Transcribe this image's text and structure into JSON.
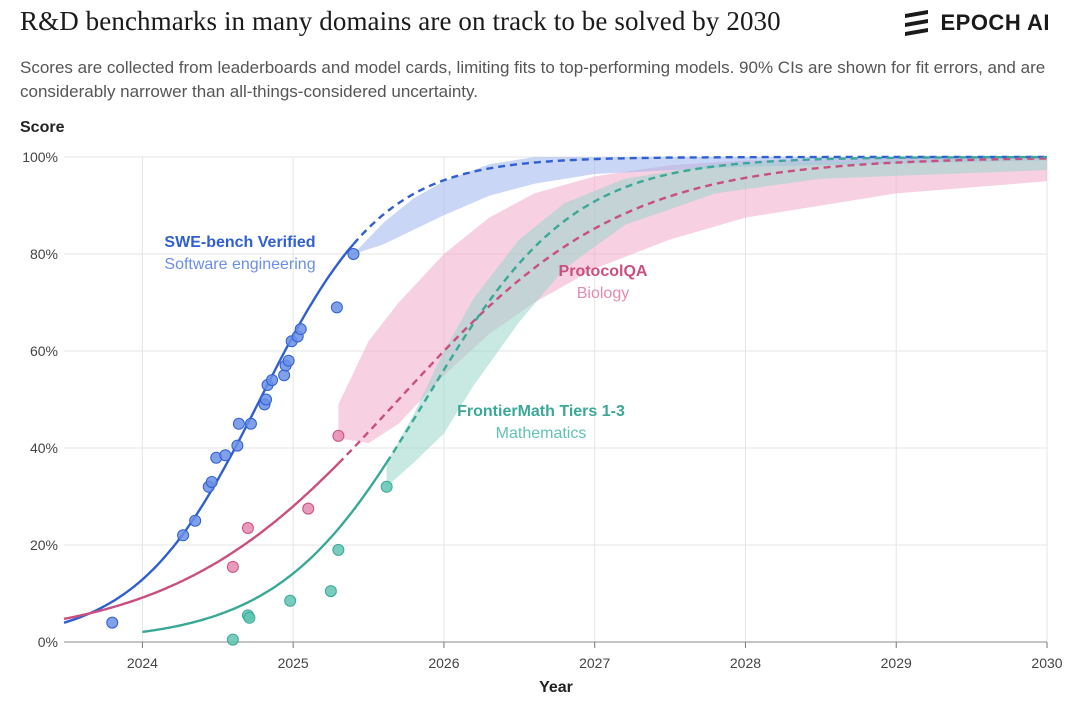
{
  "header": {
    "title": "R&D benchmarks in many domains are on track to be solved by 2030",
    "subtitle": "Scores are collected from leaderboards and model cards, limiting fits to top-performing models. 90% CIs are shown for fit errors, and are considerably narrower than all-things-considered uncertainty.",
    "logo_text": "EPOCH AI",
    "logo_icon": "epoch-stripes-icon"
  },
  "chart_data": {
    "type": "line",
    "xlabel": "Year",
    "ylabel": "Score",
    "xlim": [
      2023.48,
      2030.0
    ],
    "ylim": [
      0,
      100
    ],
    "x_ticks": [
      2024,
      2025,
      2026,
      2027,
      2028,
      2029,
      2030
    ],
    "x_tick_labels": [
      "2024",
      "2025",
      "2026",
      "2027",
      "2028",
      "2029",
      "2030"
    ],
    "y_ticks": [
      0,
      20,
      40,
      60,
      80,
      100
    ],
    "y_tick_labels": [
      "0%",
      "20%",
      "40%",
      "60%",
      "80%",
      "100%"
    ],
    "grid": true,
    "legend": "inline labels",
    "series": [
      {
        "name": "SWE-bench Verified",
        "domain": "Software engineering",
        "color": "#2f5fd0",
        "light_color": "#6b8fe6",
        "band_color": "#9db5ef",
        "fit_midpoint": 2024.78,
        "fit_rate": 2.45,
        "fit_end": 2025.4,
        "band_upper": [
          [
            2025.4,
            80
          ],
          [
            2025.6,
            86.5
          ],
          [
            2025.8,
            91.5
          ],
          [
            2026.0,
            95
          ],
          [
            2026.3,
            98.5
          ],
          [
            2026.6,
            100
          ],
          [
            2030,
            100
          ]
        ],
        "band_lower": [
          [
            2025.4,
            80
          ],
          [
            2025.6,
            82
          ],
          [
            2025.8,
            85
          ],
          [
            2026.0,
            88
          ],
          [
            2026.3,
            92
          ],
          [
            2026.6,
            94.5
          ],
          [
            2027.0,
            96.5
          ],
          [
            2028.0,
            98
          ],
          [
            2030,
            99.3
          ]
        ],
        "points": [
          [
            2023.8,
            4
          ],
          [
            2024.27,
            22
          ],
          [
            2024.35,
            25
          ],
          [
            2024.44,
            32
          ],
          [
            2024.46,
            33
          ],
          [
            2024.49,
            38
          ],
          [
            2024.55,
            38.5
          ],
          [
            2024.63,
            40.5
          ],
          [
            2024.64,
            45
          ],
          [
            2024.72,
            45
          ],
          [
            2024.81,
            49
          ],
          [
            2024.82,
            50
          ],
          [
            2024.83,
            53
          ],
          [
            2024.86,
            54
          ],
          [
            2024.94,
            55
          ],
          [
            2024.95,
            57
          ],
          [
            2024.97,
            58
          ],
          [
            2024.99,
            62
          ],
          [
            2025.03,
            63
          ],
          [
            2025.05,
            64.5
          ],
          [
            2025.29,
            69
          ],
          [
            2025.4,
            80
          ]
        ]
      },
      {
        "name": "ProtocolQA",
        "domain": "Biology",
        "color": "#c94f80",
        "light_color": "#e58ab1",
        "band_color": "#f0aacb",
        "fit_midpoint": 2025.7,
        "fit_rate": 1.35,
        "fit_end": 2025.3,
        "band_upper": [
          [
            2025.3,
            49
          ],
          [
            2025.5,
            62
          ],
          [
            2025.7,
            70
          ],
          [
            2026.0,
            80
          ],
          [
            2026.3,
            87.5
          ],
          [
            2026.6,
            92.5
          ],
          [
            2027.0,
            96
          ],
          [
            2027.5,
            98.3
          ],
          [
            2028.0,
            99.3
          ],
          [
            2030,
            100
          ]
        ],
        "band_lower": [
          [
            2025.3,
            42
          ],
          [
            2025.5,
            41
          ],
          [
            2025.7,
            45
          ],
          [
            2026.0,
            55
          ],
          [
            2026.3,
            63.5
          ],
          [
            2026.6,
            70
          ],
          [
            2027.0,
            77
          ],
          [
            2027.5,
            83
          ],
          [
            2028.0,
            87.5
          ],
          [
            2029.0,
            92.5
          ],
          [
            2030,
            95
          ]
        ],
        "points": [
          [
            2024.6,
            15.5
          ],
          [
            2024.7,
            23.5
          ],
          [
            2025.1,
            27.5
          ],
          [
            2025.3,
            42.5
          ]
        ]
      },
      {
        "name": "FrontierMath Tiers 1-3",
        "domain": "Mathematics",
        "color": "#3aa897",
        "light_color": "#5fc3b3",
        "band_color": "#9ad6cb",
        "fit_midpoint": 2025.88,
        "fit_rate": 2.05,
        "fit_start": 2024.0,
        "fit_end": 2025.62,
        "band_upper": [
          [
            2025.62,
            37
          ],
          [
            2025.8,
            47
          ],
          [
            2026.0,
            60
          ],
          [
            2026.2,
            71
          ],
          [
            2026.5,
            83
          ],
          [
            2026.8,
            90.5
          ],
          [
            2027.2,
            95.5
          ],
          [
            2027.8,
            98.5
          ],
          [
            2030,
            100
          ]
        ],
        "band_lower": [
          [
            2025.62,
            32
          ],
          [
            2025.8,
            37
          ],
          [
            2026.0,
            43
          ],
          [
            2026.2,
            53
          ],
          [
            2026.5,
            66
          ],
          [
            2026.8,
            77
          ],
          [
            2027.2,
            86
          ],
          [
            2027.8,
            92.5
          ],
          [
            2028.5,
            95.5
          ],
          [
            2030,
            97.3
          ]
        ],
        "points": [
          [
            2024.6,
            0.5
          ],
          [
            2024.7,
            5.5
          ],
          [
            2024.71,
            5
          ],
          [
            2024.98,
            8.5
          ],
          [
            2025.25,
            10.5
          ],
          [
            2025.3,
            19
          ],
          [
            2025.62,
            32
          ]
        ]
      }
    ]
  }
}
